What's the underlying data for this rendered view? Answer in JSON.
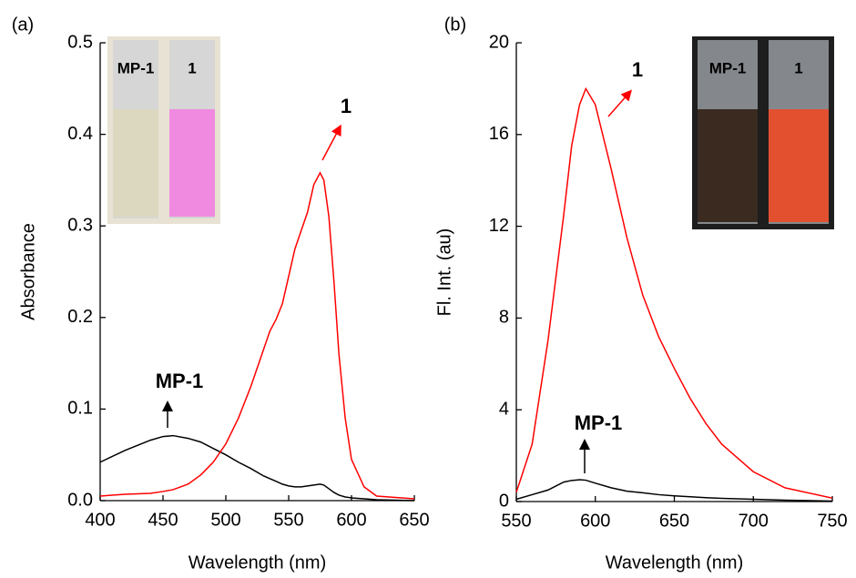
{
  "chart_data": [
    {
      "type": "line",
      "panel_label": "(a)",
      "x_label": "Wavelength (nm)",
      "y_label": "Absorbance",
      "x": [
        400,
        420,
        440,
        450,
        458,
        470,
        480,
        490,
        500,
        510,
        520,
        530,
        535,
        540,
        545,
        550,
        555,
        560,
        565,
        570,
        575,
        578,
        582,
        586,
        590,
        595,
        600,
        610,
        620,
        650
      ],
      "series": [
        {
          "name": "MP-1",
          "color": "#000000",
          "values": [
            0.042,
            0.055,
            0.066,
            0.07,
            0.071,
            0.068,
            0.064,
            0.057,
            0.05,
            0.042,
            0.035,
            0.027,
            0.024,
            0.021,
            0.018,
            0.016,
            0.015,
            0.015,
            0.016,
            0.017,
            0.018,
            0.017,
            0.013,
            0.009,
            0.006,
            0.004,
            0.003,
            0.002,
            0.001,
            0.0
          ]
        },
        {
          "name": "1",
          "color": "#ff0000",
          "values": [
            0.005,
            0.007,
            0.008,
            0.01,
            0.012,
            0.018,
            0.028,
            0.042,
            0.062,
            0.09,
            0.125,
            0.165,
            0.185,
            0.198,
            0.215,
            0.245,
            0.275,
            0.295,
            0.315,
            0.345,
            0.358,
            0.35,
            0.31,
            0.24,
            0.16,
            0.09,
            0.045,
            0.015,
            0.005,
            0.002
          ]
        }
      ],
      "inset_labels": [
        "MP-1",
        "1"
      ],
      "xlim": [
        400,
        650
      ],
      "xticks": [
        400,
        450,
        500,
        550,
        600,
        650
      ],
      "ylim": [
        0,
        0.5
      ],
      "yticks": [
        {
          "value": 0,
          "label": "0.0"
        },
        0.1,
        0.2,
        0.3,
        0.4,
        0.5
      ]
    },
    {
      "type": "line",
      "panel_label": "(b)",
      "x_label": "Wavelength (nm)",
      "y_label": "Fl. Int. (au)",
      "x": [
        550,
        560,
        570,
        580,
        585,
        590,
        594,
        600,
        610,
        620,
        630,
        640,
        650,
        660,
        670,
        680,
        700,
        720,
        750
      ],
      "series": [
        {
          "name": "MP-1",
          "color": "#000000",
          "values": [
            0.1,
            0.3,
            0.5,
            0.85,
            0.92,
            0.95,
            0.93,
            0.8,
            0.6,
            0.45,
            0.38,
            0.3,
            0.25,
            0.21,
            0.17,
            0.14,
            0.1,
            0.06,
            0.02
          ]
        },
        {
          "name": "1",
          "color": "#ff0000",
          "values": [
            0.4,
            2.5,
            7,
            12.5,
            15.5,
            17.3,
            18,
            17.3,
            14.5,
            11.5,
            9,
            7.2,
            5.8,
            4.5,
            3.4,
            2.5,
            1.3,
            0.6,
            0.15
          ]
        }
      ],
      "inset_labels": [
        "MP-1",
        "1"
      ],
      "xlim": [
        550,
        750
      ],
      "xticks": [
        550,
        600,
        650,
        700,
        750
      ],
      "ylim": [
        0,
        20
      ],
      "yticks": [
        0,
        4,
        8,
        12,
        16,
        20
      ]
    }
  ]
}
